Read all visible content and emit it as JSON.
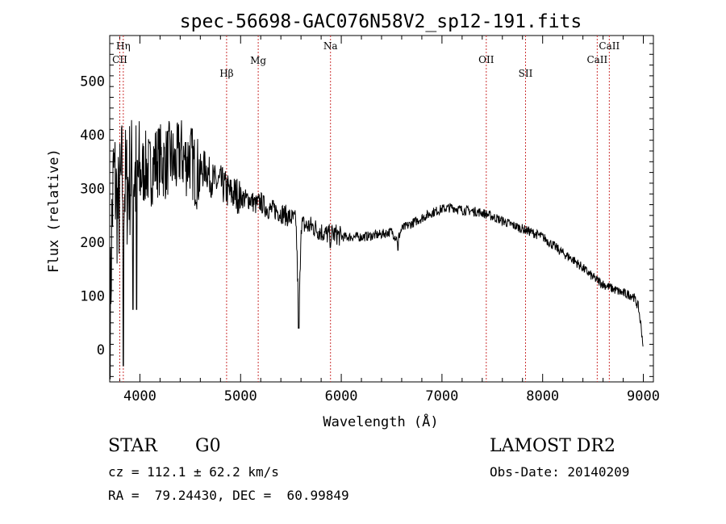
{
  "chart_data": {
    "type": "line",
    "title": "spec-56698-GAC076N58V2_sp12-191.fits",
    "xlabel": "Wavelength (Å)",
    "ylabel": "Flux (relative)",
    "xlim": [
      3700,
      9100
    ],
    "ylim": [
      -60,
      585
    ],
    "xticks": [
      4000,
      5000,
      6000,
      7000,
      8000,
      9000
    ],
    "yticks": [
      0,
      100,
      200,
      300,
      400,
      500
    ],
    "grid": false,
    "legend": "none",
    "lines": [
      {
        "label": "Hη",
        "wavelength": 3835,
        "row": "top"
      },
      {
        "label": "CII",
        "wavelength": 3800,
        "row": "mid"
      },
      {
        "label": "Hβ",
        "wavelength": 4861,
        "row": "low"
      },
      {
        "label": "Mg",
        "wavelength": 5175,
        "row": "mid2"
      },
      {
        "label": "Na",
        "wavelength": 5893,
        "row": "top"
      },
      {
        "label": "OII",
        "wavelength": 7440,
        "row": "mid"
      },
      {
        "label": "SII",
        "wavelength": 7830,
        "row": "low"
      },
      {
        "label": "CaII",
        "wavelength": 8542,
        "row": "mid"
      },
      {
        "label": "CaII",
        "wavelength": 8662,
        "row": "top"
      }
    ],
    "series": [
      {
        "x": [
          3705,
          3720,
          3740,
          3760,
          3780,
          3800,
          3820,
          3840,
          3870,
          3900,
          3930,
          3960,
          4000,
          4050,
          4100,
          4150,
          4200,
          4250,
          4300,
          4350,
          4400,
          4450,
          4500,
          4550,
          4600,
          4650,
          4700,
          4750,
          4800,
          4850,
          4900,
          4950,
          5000,
          5050,
          5100,
          5150,
          5200,
          5250,
          5300,
          5350,
          5400,
          5450,
          5500,
          5550,
          5580,
          5600,
          5650,
          5700,
          5750,
          5800,
          5850,
          5900,
          5950,
          6000,
          6100,
          6200,
          6300,
          6400,
          6500,
          6560,
          6600,
          6700,
          6800,
          6900,
          7000,
          7100,
          7200,
          7300,
          7400,
          7500,
          7600,
          7700,
          7800,
          7900,
          8000,
          8100,
          8200,
          8300,
          8400,
          8500,
          8600,
          8700,
          8800,
          8850,
          8900,
          8950,
          8980,
          9000
        ],
        "y": [
          40,
          220,
          330,
          300,
          250,
          280,
          320,
          310,
          300,
          320,
          330,
          320,
          320,
          340,
          330,
          350,
          355,
          345,
          360,
          340,
          370,
          350,
          360,
          330,
          330,
          340,
          320,
          310,
          310,
          300,
          290,
          290,
          285,
          280,
          280,
          270,
          275,
          265,
          260,
          260,
          255,
          250,
          245,
          240,
          45,
          235,
          230,
          230,
          225,
          220,
          215,
          215,
          215,
          210,
          210,
          210,
          212,
          215,
          220,
          205,
          225,
          235,
          245,
          255,
          262,
          265,
          260,
          258,
          255,
          248,
          240,
          232,
          225,
          218,
          210,
          195,
          180,
          168,
          152,
          135,
          122,
          113,
          105,
          103,
          100,
          80,
          40,
          5
        ]
      }
    ]
  },
  "info": {
    "object_class": "STAR",
    "subclass": "G0",
    "survey": "LAMOST DR2",
    "cz": "cz = 112.1 ± 62.2 km/s",
    "obs_date": "Obs-Date: 20140209",
    "coords": "RA =  79.24430, DEC =  60.99849"
  }
}
